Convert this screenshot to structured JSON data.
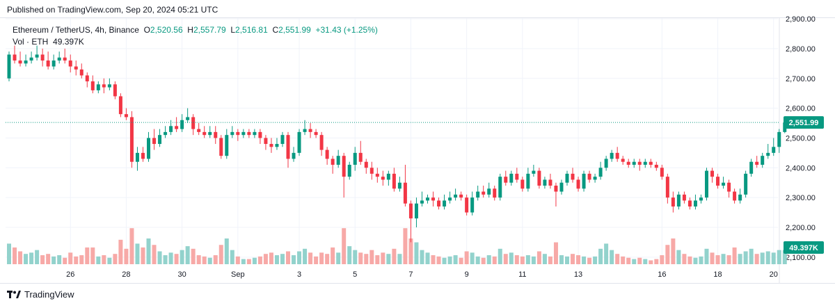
{
  "header": {
    "published": "Published on TradingView.com, Sep 20, 2024 05:21 UTC"
  },
  "legend": {
    "symbol": "Ethereum / TetherUS, 4h, Binance",
    "o_label": "O",
    "o_value": "2,520.56",
    "h_label": "H",
    "h_value": "2,557.79",
    "l_label": "L",
    "l_value": "2,516.81",
    "c_label": "C",
    "c_value": "2,551.99",
    "change": "+31.43 (+1.25%)",
    "vol_label": "Vol · ETH",
    "vol_value": "49.397K"
  },
  "colors": {
    "up": "#089981",
    "down": "#f23645",
    "vol_up": "#92d2cc",
    "vol_down": "#f7a9a7",
    "grid": "#f0f3fa",
    "text": "#131722"
  },
  "footer": {
    "brand": "TradingView"
  },
  "chart_data": {
    "type": "candlestick",
    "title": "Ethereum / TetherUS, 4h, Binance",
    "last_price": 2551.99,
    "last_price_label": "2,551.99",
    "last_volume_label": "49.397K",
    "ylim": [
      2070,
      2910
    ],
    "y_ticks": [
      2100,
      2200,
      2300,
      2400,
      2500,
      2600,
      2700,
      2800,
      2900
    ],
    "y_tick_labels": [
      "2,100.00",
      "2,200.00",
      "2,300.00",
      "2,400.00",
      "2,500.00",
      "2,600.00",
      "2,700.00",
      "2,800.00",
      "2,900.00"
    ],
    "x_ticks": [
      {
        "label": "26",
        "index": 11
      },
      {
        "label": "28",
        "index": 21
      },
      {
        "label": "30",
        "index": 31
      },
      {
        "label": "Sep",
        "index": 41
      },
      {
        "label": "3",
        "index": 52
      },
      {
        "label": "5",
        "index": 62
      },
      {
        "label": "7",
        "index": 72
      },
      {
        "label": "9",
        "index": 82
      },
      {
        "label": "11",
        "index": 92
      },
      {
        "label": "13",
        "index": 102
      },
      {
        "label": "16",
        "index": 117
      },
      {
        "label": "18",
        "index": 127
      },
      {
        "label": "20",
        "index": 137
      }
    ],
    "candles": [
      [
        2700,
        2780,
        2790,
        2690,
        1.6
      ],
      [
        2780,
        2760,
        2810,
        2750,
        1.3
      ],
      [
        2760,
        2750,
        2790,
        2740,
        1.0
      ],
      [
        2750,
        2760,
        2780,
        2740,
        0.8
      ],
      [
        2760,
        2770,
        2790,
        2750,
        0.9
      ],
      [
        2770,
        2780,
        2810,
        2760,
        1.1
      ],
      [
        2780,
        2760,
        2800,
        2740,
        0.7
      ],
      [
        2760,
        2740,
        2790,
        2730,
        0.8
      ],
      [
        2740,
        2760,
        2780,
        2730,
        0.6
      ],
      [
        2760,
        2770,
        2790,
        2750,
        0.7
      ],
      [
        2770,
        2760,
        2800,
        2750,
        0.5
      ],
      [
        2760,
        2740,
        2780,
        2720,
        0.9
      ],
      [
        2740,
        2730,
        2760,
        2710,
        0.6
      ],
      [
        2730,
        2710,
        2750,
        2700,
        0.7
      ],
      [
        2710,
        2690,
        2720,
        2670,
        1.3
      ],
      [
        2690,
        2660,
        2710,
        2650,
        1.3
      ],
      [
        2660,
        2680,
        2690,
        2650,
        0.6
      ],
      [
        2680,
        2670,
        2700,
        2650,
        0.7
      ],
      [
        2670,
        2680,
        2700,
        2660,
        0.5
      ],
      [
        2680,
        2640,
        2690,
        2630,
        0.8
      ],
      [
        2640,
        2580,
        2650,
        2570,
        1.9
      ],
      [
        2580,
        2570,
        2600,
        2560,
        1.2
      ],
      [
        2570,
        2420,
        2590,
        2400,
        2.8
      ],
      [
        2420,
        2450,
        2470,
        2390,
        1.6
      ],
      [
        2450,
        2430,
        2470,
        2420,
        1.3
      ],
      [
        2430,
        2500,
        2520,
        2420,
        2.0
      ],
      [
        2500,
        2480,
        2530,
        2460,
        1.5
      ],
      [
        2480,
        2510,
        2530,
        2470,
        1.0
      ],
      [
        2510,
        2520,
        2540,
        2500,
        0.7
      ],
      [
        2520,
        2540,
        2560,
        2510,
        0.9
      ],
      [
        2540,
        2530,
        2570,
        2520,
        0.8
      ],
      [
        2530,
        2560,
        2580,
        2520,
        1.1
      ],
      [
        2560,
        2570,
        2600,
        2550,
        1.4
      ],
      [
        2570,
        2530,
        2580,
        2510,
        1.2
      ],
      [
        2530,
        2520,
        2550,
        2510,
        0.7
      ],
      [
        2520,
        2510,
        2540,
        2500,
        0.6
      ],
      [
        2510,
        2520,
        2540,
        2500,
        0.5
      ],
      [
        2520,
        2500,
        2540,
        2480,
        0.7
      ],
      [
        2500,
        2440,
        2510,
        2430,
        1.5
      ],
      [
        2440,
        2510,
        2530,
        2430,
        2.0
      ],
      [
        2510,
        2520,
        2540,
        2500,
        1.1
      ],
      [
        2520,
        2510,
        2530,
        2490,
        0.6
      ],
      [
        2510,
        2520,
        2530,
        2500,
        0.4
      ],
      [
        2520,
        2510,
        2530,
        2500,
        0.4
      ],
      [
        2510,
        2520,
        2530,
        2500,
        0.5
      ],
      [
        2520,
        2500,
        2530,
        2480,
        0.6
      ],
      [
        2500,
        2480,
        2510,
        2460,
        0.8
      ],
      [
        2480,
        2470,
        2500,
        2450,
        0.9
      ],
      [
        2470,
        2480,
        2500,
        2460,
        0.7
      ],
      [
        2480,
        2510,
        2520,
        2470,
        0.8
      ],
      [
        2510,
        2430,
        2520,
        2400,
        1.0
      ],
      [
        2430,
        2450,
        2470,
        2420,
        0.7
      ],
      [
        2450,
        2520,
        2530,
        2440,
        1.0
      ],
      [
        2520,
        2530,
        2560,
        2510,
        1.2
      ],
      [
        2530,
        2520,
        2550,
        2500,
        0.9
      ],
      [
        2520,
        2510,
        2530,
        2500,
        0.6
      ],
      [
        2510,
        2460,
        2520,
        2440,
        0.9
      ],
      [
        2460,
        2430,
        2470,
        2410,
        0.8
      ],
      [
        2430,
        2410,
        2440,
        2380,
        1.3
      ],
      [
        2410,
        2440,
        2460,
        2400,
        0.9
      ],
      [
        2440,
        2370,
        2450,
        2300,
        2.8
      ],
      [
        2370,
        2410,
        2420,
        2360,
        1.4
      ],
      [
        2410,
        2450,
        2470,
        2390,
        1.1
      ],
      [
        2450,
        2420,
        2490,
        2410,
        0.9
      ],
      [
        2420,
        2400,
        2430,
        2380,
        0.8
      ],
      [
        2400,
        2380,
        2420,
        2360,
        1.1
      ],
      [
        2380,
        2370,
        2400,
        2350,
        0.7
      ],
      [
        2370,
        2360,
        2390,
        2340,
        0.9
      ],
      [
        2360,
        2380,
        2390,
        2340,
        0.8
      ],
      [
        2380,
        2330,
        2400,
        2320,
        1.2
      ],
      [
        2330,
        2350,
        2370,
        2320,
        0.8
      ],
      [
        2350,
        2280,
        2410,
        2270,
        2.8
      ],
      [
        2280,
        2230,
        2290,
        2150,
        2.0
      ],
      [
        2230,
        2280,
        2300,
        2200,
        1.7
      ],
      [
        2280,
        2290,
        2320,
        2270,
        1.1
      ],
      [
        2290,
        2300,
        2310,
        2280,
        0.9
      ],
      [
        2300,
        2290,
        2320,
        2270,
        0.7
      ],
      [
        2290,
        2270,
        2300,
        2260,
        0.6
      ],
      [
        2270,
        2290,
        2310,
        2260,
        0.5
      ],
      [
        2290,
        2300,
        2320,
        2280,
        0.6
      ],
      [
        2300,
        2310,
        2330,
        2290,
        0.7
      ],
      [
        2310,
        2300,
        2320,
        2290,
        0.5
      ],
      [
        2300,
        2250,
        2310,
        2240,
        1.0
      ],
      [
        2250,
        2300,
        2320,
        2240,
        0.9
      ],
      [
        2300,
        2320,
        2340,
        2290,
        0.6
      ],
      [
        2320,
        2310,
        2340,
        2300,
        0.5
      ],
      [
        2310,
        2330,
        2350,
        2300,
        0.7
      ],
      [
        2330,
        2300,
        2340,
        2290,
        0.6
      ],
      [
        2300,
        2370,
        2380,
        2290,
        1.2
      ],
      [
        2370,
        2350,
        2390,
        2340,
        0.8
      ],
      [
        2350,
        2380,
        2390,
        2340,
        0.9
      ],
      [
        2380,
        2360,
        2400,
        2350,
        0.7
      ],
      [
        2360,
        2330,
        2370,
        2320,
        0.6
      ],
      [
        2330,
        2380,
        2400,
        2320,
        0.7
      ],
      [
        2380,
        2390,
        2410,
        2370,
        0.6
      ],
      [
        2390,
        2340,
        2400,
        2330,
        1.0
      ],
      [
        2340,
        2360,
        2370,
        2330,
        0.8
      ],
      [
        2360,
        2340,
        2380,
        2330,
        0.6
      ],
      [
        2340,
        2320,
        2350,
        2270,
        1.7
      ],
      [
        2320,
        2350,
        2360,
        2310,
        0.7
      ],
      [
        2350,
        2380,
        2390,
        2340,
        0.6
      ],
      [
        2380,
        2360,
        2400,
        2350,
        0.8
      ],
      [
        2360,
        2330,
        2370,
        2320,
        0.7
      ],
      [
        2330,
        2380,
        2390,
        2320,
        0.6
      ],
      [
        2380,
        2360,
        2390,
        2350,
        0.5
      ],
      [
        2360,
        2370,
        2380,
        2350,
        0.6
      ],
      [
        2370,
        2400,
        2420,
        2360,
        1.2
      ],
      [
        2400,
        2430,
        2440,
        2390,
        1.6
      ],
      [
        2430,
        2450,
        2460,
        2420,
        1.1
      ],
      [
        2450,
        2430,
        2470,
        2420,
        0.8
      ],
      [
        2430,
        2420,
        2440,
        2410,
        0.6
      ],
      [
        2420,
        2410,
        2430,
        2400,
        0.5
      ],
      [
        2410,
        2420,
        2430,
        2400,
        0.4
      ],
      [
        2420,
        2410,
        2430,
        2390,
        0.5
      ],
      [
        2410,
        2420,
        2430,
        2400,
        0.4
      ],
      [
        2420,
        2410,
        2430,
        2400,
        0.3
      ],
      [
        2410,
        2400,
        2420,
        2390,
        0.4
      ],
      [
        2400,
        2370,
        2410,
        2360,
        0.7
      ],
      [
        2370,
        2300,
        2380,
        2280,
        1.5
      ],
      [
        2300,
        2270,
        2320,
        2250,
        2.0
      ],
      [
        2270,
        2310,
        2320,
        2260,
        1.1
      ],
      [
        2310,
        2290,
        2320,
        2280,
        0.8
      ],
      [
        2290,
        2270,
        2300,
        2260,
        0.6
      ],
      [
        2270,
        2290,
        2310,
        2260,
        0.5
      ],
      [
        2290,
        2300,
        2310,
        2280,
        0.6
      ],
      [
        2300,
        2390,
        2400,
        2290,
        1.2
      ],
      [
        2390,
        2370,
        2400,
        2350,
        0.9
      ],
      [
        2370,
        2340,
        2380,
        2330,
        0.7
      ],
      [
        2340,
        2350,
        2370,
        2330,
        0.8
      ],
      [
        2350,
        2320,
        2360,
        2300,
        0.7
      ],
      [
        2320,
        2290,
        2330,
        2280,
        1.3
      ],
      [
        2290,
        2310,
        2330,
        2280,
        0.8
      ],
      [
        2310,
        2380,
        2390,
        2300,
        1.0
      ],
      [
        2380,
        2420,
        2430,
        2370,
        1.2
      ],
      [
        2420,
        2410,
        2440,
        2400,
        0.8
      ],
      [
        2410,
        2440,
        2450,
        2400,
        0.9
      ],
      [
        2440,
        2450,
        2480,
        2430,
        1.0
      ],
      [
        2450,
        2470,
        2500,
        2440,
        0.9
      ],
      [
        2470,
        2520,
        2530,
        2450,
        1.1
      ],
      [
        2520,
        2552,
        2558,
        2516,
        1.1
      ]
    ]
  }
}
